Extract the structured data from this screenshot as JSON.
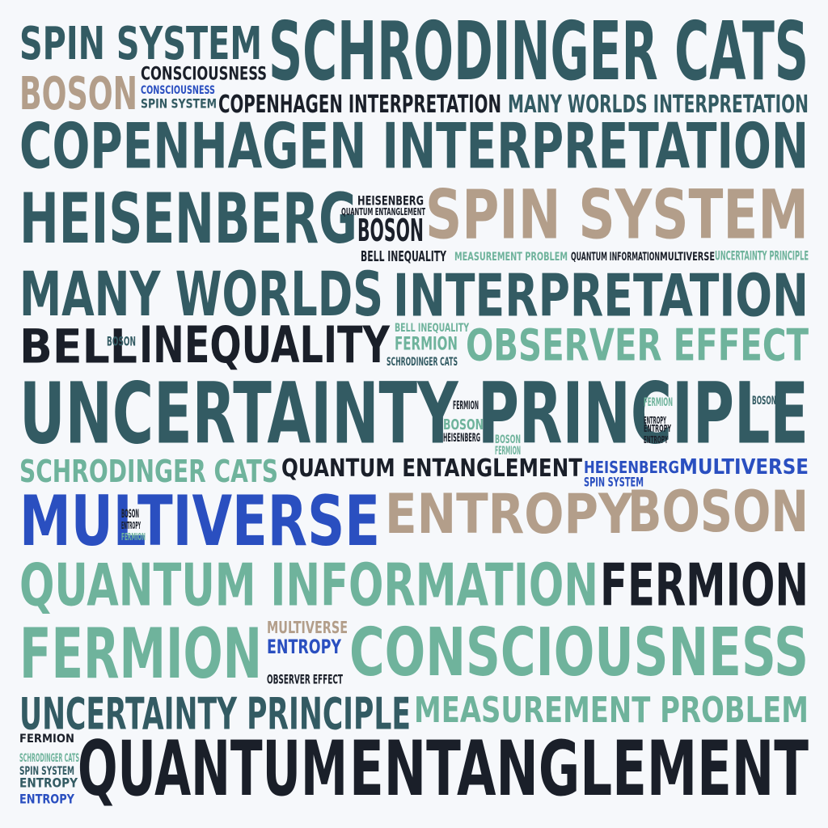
{
  "palette": {
    "teal": "#335b63",
    "tan": "#b39e8a",
    "mint": "#6fb39c",
    "navy": "#1a1f29",
    "blue": "#2a4fc0"
  },
  "words": [
    {
      "text": "SPIN SYSTEM",
      "color": "teal"
    },
    {
      "text": "SCHRODINGER CATS",
      "color": "teal"
    },
    {
      "text": "BOSON",
      "color": "tan"
    },
    {
      "text": "CONSCIOUSNESS",
      "color": "navy"
    },
    {
      "text": "CONSCIOUSNESS",
      "color": "blue"
    },
    {
      "text": "SPIN SYSTEM",
      "color": "teal"
    },
    {
      "text": "COPENHAGEN INTERPRETATION",
      "color": "navy"
    },
    {
      "text": "MANY WORLDS INTERPRETATION",
      "color": "teal"
    },
    {
      "text": "COPENHAGEN INTERPRETATION",
      "color": "teal"
    },
    {
      "text": "HEISENBERG",
      "color": "teal"
    },
    {
      "text": "SPIN SYSTEM",
      "color": "tan"
    },
    {
      "text": "BOSON",
      "color": "navy"
    },
    {
      "text": "HEISENBERG",
      "color": "navy"
    },
    {
      "text": "QUANTUM ENTANGLEMENT",
      "color": "navy"
    },
    {
      "text": "BELL INEQUALITY",
      "color": "navy"
    },
    {
      "text": "MEASUREMENT PROBLEM",
      "color": "mint"
    },
    {
      "text": "QUANTUM INFORMATION",
      "color": "navy"
    },
    {
      "text": "MULTIVERSE",
      "color": "navy"
    },
    {
      "text": "UNCERTAINTY PRINCIPLE",
      "color": "mint"
    },
    {
      "text": "MANY WORLDS",
      "color": "teal"
    },
    {
      "text": "INTERPRETATION",
      "color": "teal"
    },
    {
      "text": "BELL",
      "color": "navy"
    },
    {
      "text": "INEQUALITY",
      "color": "navy"
    },
    {
      "text": "BELL INEQUALITY",
      "color": "mint"
    },
    {
      "text": "FERMION",
      "color": "mint"
    },
    {
      "text": "OBSERVER EFFECT",
      "color": "mint"
    },
    {
      "text": "SCHRODINGER CATS",
      "color": "teal"
    },
    {
      "text": "UNCERTAINTY PRINCIPLE",
      "color": "teal"
    },
    {
      "text": "SCHRODINGER CATS",
      "color": "mint"
    },
    {
      "text": "QUANTUM ENTANGLEMENT",
      "color": "navy"
    },
    {
      "text": "HEISENBERG",
      "color": "blue"
    },
    {
      "text": "MULTIVERSE",
      "color": "blue"
    },
    {
      "text": "SPIN SYSTEM",
      "color": "blue"
    },
    {
      "text": "MULTIVERSE",
      "color": "blue"
    },
    {
      "text": "ENTROPY",
      "color": "tan"
    },
    {
      "text": "BOSON",
      "color": "tan"
    },
    {
      "text": "QUANTUM INFORMATION",
      "color": "mint"
    },
    {
      "text": "FERMION",
      "color": "navy"
    },
    {
      "text": "FERMION",
      "color": "mint"
    },
    {
      "text": "MULTIVERSE",
      "color": "tan"
    },
    {
      "text": "ENTROPY",
      "color": "blue"
    },
    {
      "text": "CONSCIOUSNESS",
      "color": "mint"
    },
    {
      "text": "OBSERVER EFFECT",
      "color": "navy"
    },
    {
      "text": "UNCERTAINTY PRINCIPLE",
      "color": "teal"
    },
    {
      "text": "MEASUREMENT PROBLEM",
      "color": "mint"
    },
    {
      "text": "FERMION",
      "color": "navy"
    },
    {
      "text": "SCHRODINGER CATS",
      "color": "mint"
    },
    {
      "text": "SPIN SYSTEM",
      "color": "teal"
    },
    {
      "text": "ENTROPY",
      "color": "teal"
    },
    {
      "text": "ENTROPY",
      "color": "blue"
    },
    {
      "text": "QUANTUM",
      "color": "navy"
    },
    {
      "text": "ENTANGLEMENT",
      "color": "navy"
    },
    {
      "text": "BOSON",
      "color": "navy"
    },
    {
      "text": "ENTROPY",
      "color": "navy"
    },
    {
      "text": "FERMION",
      "color": "mint"
    },
    {
      "text": "BOSON",
      "color": "teal"
    },
    {
      "text": "FERMION",
      "color": "navy"
    },
    {
      "text": "BOSON",
      "color": "mint"
    },
    {
      "text": "HEISENBERG",
      "color": "navy"
    },
    {
      "text": "ENTROPY",
      "color": "navy"
    },
    {
      "text": "BOSON",
      "color": "mint"
    },
    {
      "text": "FERMION",
      "color": "mint"
    },
    {
      "text": "BOSON",
      "color": "teal"
    },
    {
      "text": "FERMION",
      "color": "mint"
    },
    {
      "text": "ENTROPY",
      "color": "navy"
    },
    {
      "text": "ENTROPY",
      "color": "navy"
    }
  ]
}
